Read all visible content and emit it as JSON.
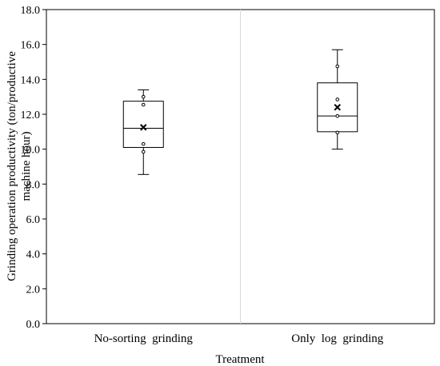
{
  "chart_data": {
    "type": "box",
    "title": "",
    "xlabel": "Treatment",
    "ylabel_lines": [
      "Grinding operation productivity (ton/productive",
      "machine hour)"
    ],
    "ylim": [
      0,
      18
    ],
    "y_ticks": [
      "0.0",
      "2.0",
      "4.0",
      "6.0",
      "8.0",
      "10.0",
      "12.0",
      "14.0",
      "16.0",
      "18.0"
    ],
    "y_tick_values": [
      0,
      2,
      4,
      6,
      8,
      10,
      12,
      14,
      16,
      18
    ],
    "categories": [
      "No-sorting  grinding",
      "Only  log  grinding"
    ],
    "boxes": [
      {
        "min": 8.55,
        "q1": 10.1,
        "median": 11.2,
        "q3": 12.75,
        "max": 13.4,
        "mean": 11.25,
        "points": [
          9.85,
          10.3,
          12.55,
          13.0
        ]
      },
      {
        "min": 10.0,
        "q1": 11.0,
        "median": 11.9,
        "q3": 13.8,
        "max": 15.7,
        "mean": 12.4,
        "points": [
          10.95,
          11.9,
          12.85,
          14.75
        ]
      }
    ],
    "grid": false,
    "category_separator": true
  }
}
